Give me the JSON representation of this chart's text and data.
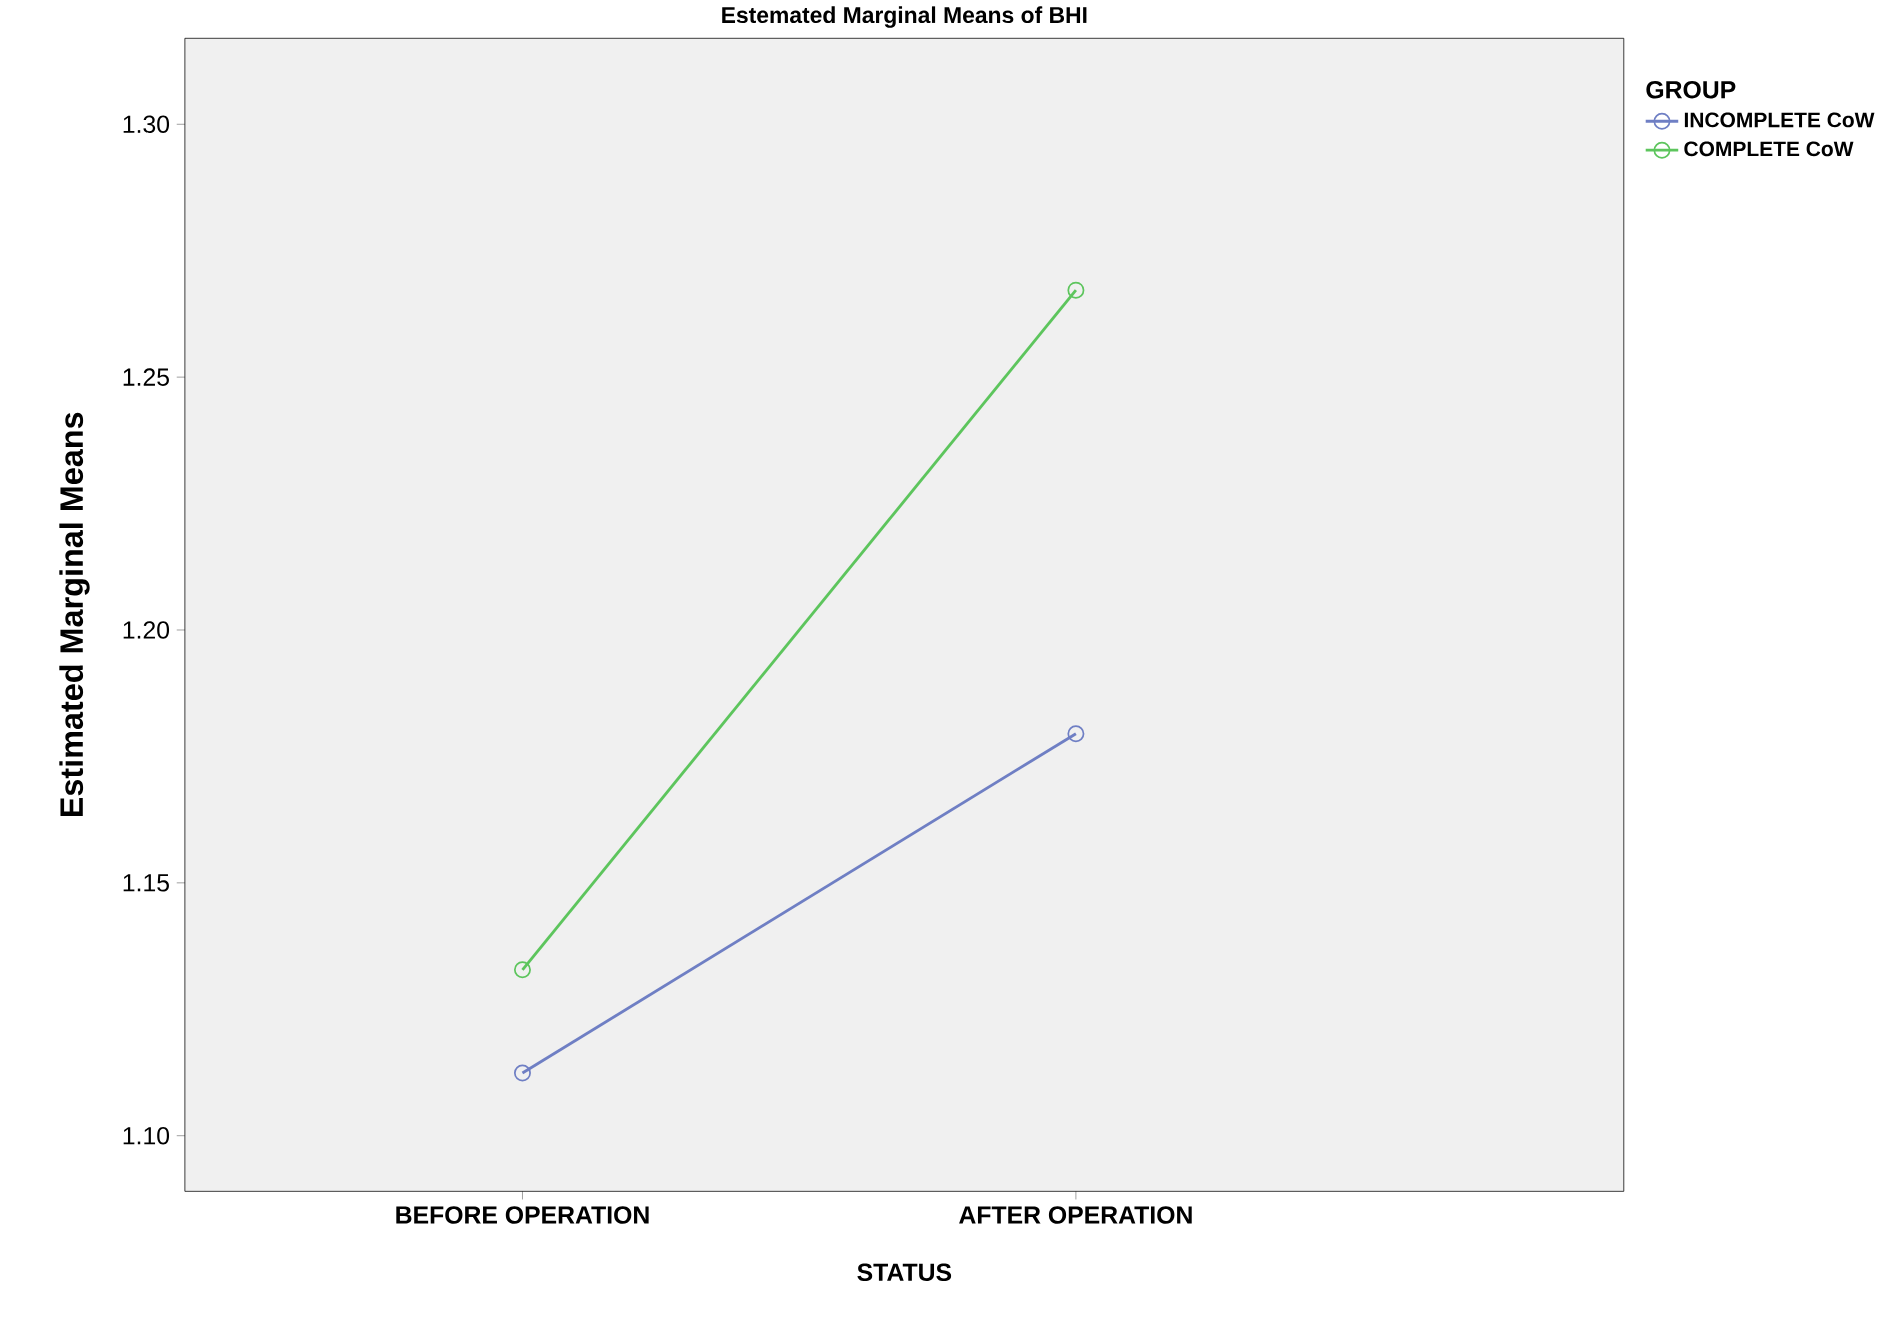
{
  "chart_data": {
    "type": "line",
    "title": "Estemated Marginal Means of BHI",
    "xlabel": "STATUS",
    "ylabel": "Estimated Marginal Means",
    "legend_title": "GROUP",
    "categories": [
      "BEFORE OPERATION",
      "AFTER OPERATION"
    ],
    "series": [
      {
        "name": "INCOMPLETE CoW",
        "color": "#6f7fc4",
        "values": [
          1.1124,
          1.1795
        ]
      },
      {
        "name": "COMPLETE CoW",
        "color": "#5dc55d",
        "values": [
          1.1328,
          1.2672
        ]
      }
    ],
    "ylim": [
      1.089,
      1.317
    ],
    "yticks": [
      {
        "value": 1.1,
        "label": "1.10"
      },
      {
        "value": 1.15,
        "label": "1.15"
      },
      {
        "value": 1.2,
        "label": "1.20"
      },
      {
        "value": 1.25,
        "label": "1.25"
      },
      {
        "value": 1.3,
        "label": "1.30"
      }
    ],
    "grid": false,
    "legend": "top right",
    "marker": "circle",
    "line_style": "solid"
  }
}
